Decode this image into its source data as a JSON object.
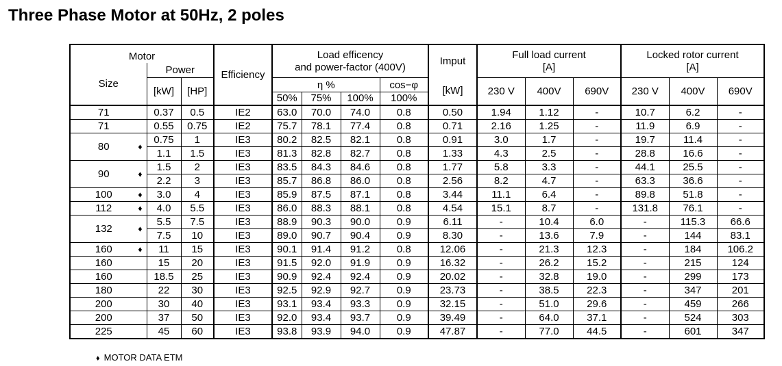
{
  "title": "Three Phase Motor at 50Hz, 2 poles",
  "header": {
    "motor": "Motor",
    "size": "Size",
    "power": "Power",
    "kw": "[kW]",
    "hp": "[HP]",
    "efficiency": "Efficiency",
    "load_eff_line1": "Load efficency",
    "load_eff_line2": "and power-factor (400V)",
    "eta": "η %",
    "cos": "cos−φ",
    "p50": "50%",
    "p75": "75%",
    "p100": "100%",
    "cos100": "100%",
    "imput": "Imput",
    "imput_unit": "[kW]",
    "full_load_line1": "Full load current",
    "full_load_line2": "[A]",
    "locked_line1": "Locked rotor current",
    "locked_line2": "[A]",
    "v230": "230 V",
    "v400": "400V",
    "v690": "690V"
  },
  "marker": "♦",
  "groups": [
    {
      "size": "71",
      "marked": false,
      "rows": [
        [
          "0.37",
          "0.5",
          "IE2",
          "63.0",
          "70.0",
          "74.0",
          "0.8",
          "0.50",
          "1.94",
          "1.12",
          "-",
          "10.7",
          "6.2",
          "-"
        ]
      ]
    },
    {
      "size": "71",
      "marked": false,
      "rows": [
        [
          "0.55",
          "0.75",
          "IE2",
          "75.7",
          "78.1",
          "77.4",
          "0.8",
          "0.71",
          "2.16",
          "1.25",
          "-",
          "11.9",
          "6.9",
          "-"
        ]
      ]
    },
    {
      "size": "80",
      "marked": true,
      "rows": [
        [
          "0.75",
          "1",
          "IE3",
          "80.2",
          "82.5",
          "82.1",
          "0.8",
          "0.91",
          "3.0",
          "1.7",
          "-",
          "19.7",
          "11.4",
          "-"
        ],
        [
          "1.1",
          "1.5",
          "IE3",
          "81.3",
          "82.8",
          "82.7",
          "0.8",
          "1.33",
          "4.3",
          "2.5",
          "-",
          "28.8",
          "16.6",
          "-"
        ]
      ]
    },
    {
      "size": "90",
      "marked": true,
      "rows": [
        [
          "1.5",
          "2",
          "IE3",
          "83.5",
          "84.3",
          "84.6",
          "0.8",
          "1.77",
          "5.8",
          "3.3",
          "-",
          "44.1",
          "25.5",
          "-"
        ],
        [
          "2.2",
          "3",
          "IE3",
          "85.7",
          "86.8",
          "86.0",
          "0.8",
          "2.56",
          "8.2",
          "4.7",
          "-",
          "63.3",
          "36.6",
          "-"
        ]
      ]
    },
    {
      "size": "100",
      "marked": true,
      "rows": [
        [
          "3.0",
          "4",
          "IE3",
          "85.9",
          "87.5",
          "87.1",
          "0.8",
          "3.44",
          "11.1",
          "6.4",
          "-",
          "89.8",
          "51.8",
          "-"
        ]
      ]
    },
    {
      "size": "112",
      "marked": true,
      "rows": [
        [
          "4.0",
          "5.5",
          "IE3",
          "86.0",
          "88.3",
          "88.1",
          "0.8",
          "4.54",
          "15.1",
          "8.7",
          "-",
          "131.8",
          "76.1",
          "-"
        ]
      ]
    },
    {
      "size": "132",
      "marked": true,
      "rows": [
        [
          "5.5",
          "7.5",
          "IE3",
          "88.9",
          "90.3",
          "90.0",
          "0.9",
          "6.11",
          "-",
          "10.4",
          "6.0",
          "-",
          "115.3",
          "66.6"
        ],
        [
          "7.5",
          "10",
          "IE3",
          "89.0",
          "90.7",
          "90.4",
          "0.9",
          "8.30",
          "-",
          "13.6",
          "7.9",
          "-",
          "144",
          "83.1"
        ]
      ]
    },
    {
      "size": "160",
      "marked": true,
      "rows": [
        [
          "11",
          "15",
          "IE3",
          "90.1",
          "91.4",
          "91.2",
          "0.8",
          "12.06",
          "-",
          "21.3",
          "12.3",
          "-",
          "184",
          "106.2"
        ]
      ]
    },
    {
      "size": "160",
      "marked": false,
      "rows": [
        [
          "15",
          "20",
          "IE3",
          "91.5",
          "92.0",
          "91.9",
          "0.9",
          "16.32",
          "-",
          "26.2",
          "15.2",
          "-",
          "215",
          "124"
        ]
      ]
    },
    {
      "size": "160",
      "marked": false,
      "rows": [
        [
          "18.5",
          "25",
          "IE3",
          "90.9",
          "92.4",
          "92.4",
          "0.9",
          "20.02",
          "-",
          "32.8",
          "19.0",
          "-",
          "299",
          "173"
        ]
      ]
    },
    {
      "size": "180",
      "marked": false,
      "rows": [
        [
          "22",
          "30",
          "IE3",
          "92.5",
          "92.9",
          "92.7",
          "0.9",
          "23.73",
          "-",
          "38.5",
          "22.3",
          "-",
          "347",
          "201"
        ]
      ]
    },
    {
      "size": "200",
      "marked": false,
      "rows": [
        [
          "30",
          "40",
          "IE3",
          "93.1",
          "93.4",
          "93.3",
          "0.9",
          "32.15",
          "-",
          "51.0",
          "29.6",
          "-",
          "459",
          "266"
        ]
      ]
    },
    {
      "size": "200",
      "marked": false,
      "rows": [
        [
          "37",
          "50",
          "IE3",
          "92.0",
          "93.4",
          "93.7",
          "0.9",
          "39.49",
          "-",
          "64.0",
          "37.1",
          "-",
          "524",
          "303"
        ]
      ]
    },
    {
      "size": "225",
      "marked": false,
      "rows": [
        [
          "45",
          "60",
          "IE3",
          "93.8",
          "93.9",
          "94.0",
          "0.9",
          "47.87",
          "-",
          "77.0",
          "44.5",
          "-",
          "601",
          "347"
        ]
      ]
    }
  ],
  "footnote": {
    "marker": "♦",
    "text": "MOTOR DATA ETM"
  }
}
